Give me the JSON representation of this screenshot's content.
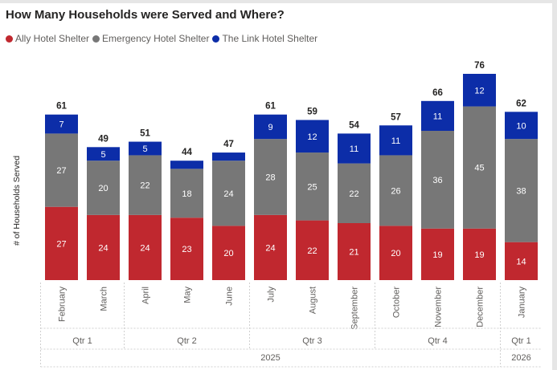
{
  "chart_data": {
    "type": "bar",
    "stacked": true,
    "title": "How Many Households were Served and Where?",
    "ylabel": "# of Households Served",
    "xlabel": "",
    "legend_position": "top-left",
    "grid": false,
    "ylim": [
      0,
      76
    ],
    "categories": [
      "February",
      "March",
      "April",
      "May",
      "June",
      "July",
      "August",
      "September",
      "October",
      "November",
      "December",
      "January"
    ],
    "series": [
      {
        "name": "Ally Hotel Shelter",
        "color": "#c0282f",
        "values": [
          27,
          24,
          24,
          23,
          20,
          24,
          22,
          21,
          20,
          19,
          19,
          14
        ]
      },
      {
        "name": "Emergency Hotel Shelter",
        "color": "#777777",
        "values": [
          27,
          20,
          22,
          18,
          24,
          28,
          25,
          22,
          26,
          36,
          45,
          38
        ]
      },
      {
        "name": "The Link Hotel Shelter",
        "color": "#0c2da8",
        "values": [
          7,
          5,
          5,
          3,
          3,
          9,
          12,
          11,
          11,
          11,
          12,
          10
        ]
      }
    ],
    "segment_labels_shown": [
      [
        true,
        true,
        true,
        true,
        true,
        true,
        true,
        true,
        true,
        true,
        true,
        true
      ],
      [
        true,
        true,
        true,
        true,
        true,
        true,
        true,
        true,
        true,
        true,
        true,
        true
      ],
      [
        true,
        true,
        true,
        false,
        false,
        true,
        true,
        true,
        true,
        true,
        true,
        true
      ]
    ],
    "totals": [
      61,
      49,
      51,
      44,
      47,
      61,
      59,
      54,
      57,
      66,
      76,
      62
    ],
    "quarters": [
      {
        "label": "Qtr 1",
        "span": 2
      },
      {
        "label": "Qtr 2",
        "span": 3
      },
      {
        "label": "Qtr 3",
        "span": 3
      },
      {
        "label": "Qtr 4",
        "span": 3
      },
      {
        "label": "Qtr 1",
        "span": 1
      }
    ],
    "years": [
      {
        "label": "2025",
        "span": 11
      },
      {
        "label": "2026",
        "span": 1
      }
    ]
  }
}
